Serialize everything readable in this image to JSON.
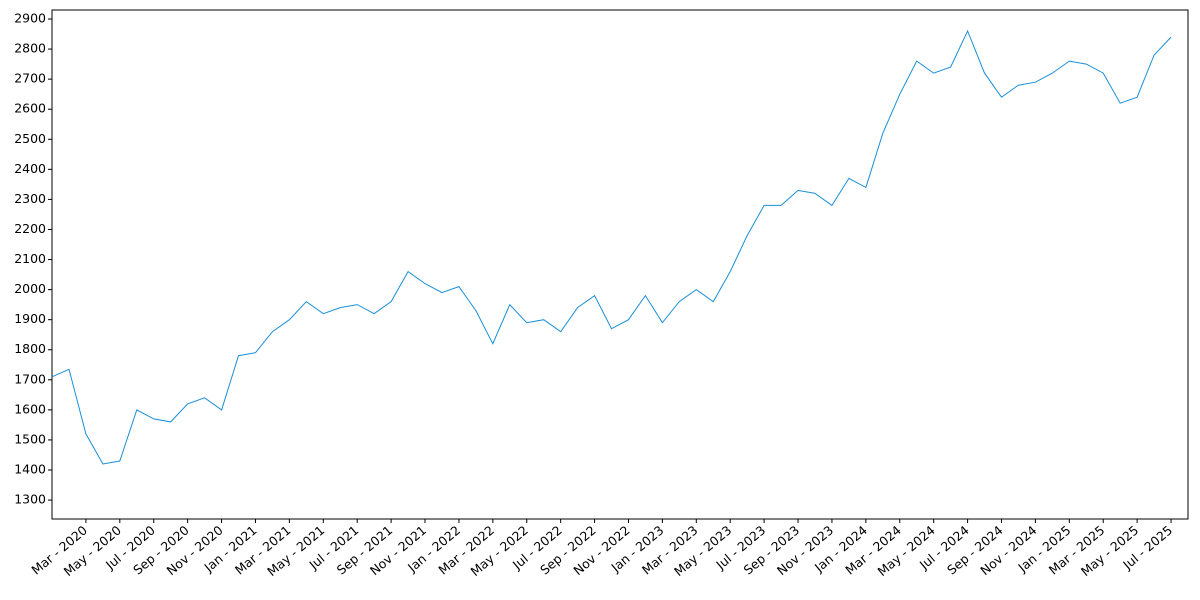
{
  "chart_data": {
    "type": "line",
    "x": [
      "2020-01",
      "2020-02",
      "2020-03",
      "2020-04",
      "2020-05",
      "2020-06",
      "2020-07",
      "2020-08",
      "2020-09",
      "2020-10",
      "2020-11",
      "2020-12",
      "2021-01",
      "2021-02",
      "2021-03",
      "2021-04",
      "2021-05",
      "2021-06",
      "2021-07",
      "2021-08",
      "2021-09",
      "2021-10",
      "2021-11",
      "2021-12",
      "2022-01",
      "2022-02",
      "2022-03",
      "2022-04",
      "2022-05",
      "2022-06",
      "2022-07",
      "2022-08",
      "2022-09",
      "2022-10",
      "2022-11",
      "2022-12",
      "2023-01",
      "2023-02",
      "2023-03",
      "2023-04",
      "2023-05",
      "2023-06",
      "2023-07",
      "2023-08",
      "2023-09",
      "2023-10",
      "2023-11",
      "2023-12",
      "2024-01",
      "2024-02",
      "2024-03",
      "2024-04",
      "2024-05",
      "2024-06",
      "2024-07",
      "2024-08",
      "2024-09",
      "2024-10",
      "2024-11",
      "2024-12",
      "2025-01",
      "2025-02",
      "2025-03",
      "2025-04",
      "2025-05",
      "2025-06",
      "2025-07"
    ],
    "series": [
      {
        "color": "#1a8fd6",
        "values": [
          1710,
          1735,
          1520,
          1420,
          1430,
          1600,
          1570,
          1560,
          1620,
          1640,
          1600,
          1780,
          1790,
          1860,
          1900,
          1960,
          1920,
          1940,
          1950,
          1920,
          1960,
          2060,
          2020,
          1990,
          2010,
          1930,
          1820,
          1950,
          1890,
          1900,
          1860,
          1940,
          1980,
          1870,
          1900,
          1980,
          1890,
          1960,
          2000,
          1960,
          2060,
          2180,
          2280,
          2280,
          2330,
          2320,
          2280,
          2370,
          2340,
          2520,
          2650,
          2760,
          2720,
          2740,
          2860,
          2720,
          2640,
          2680,
          2690,
          2720,
          2760,
          2750,
          2720,
          2620,
          2640,
          2780,
          2840
        ]
      }
    ],
    "xlim": [
      "2020-01",
      "2025-08"
    ],
    "xticks": [
      {
        "value": "2020-03",
        "label": "Mar - 2020"
      },
      {
        "value": "2020-05",
        "label": "May - 2020"
      },
      {
        "value": "2020-07",
        "label": "Jul - 2020"
      },
      {
        "value": "2020-09",
        "label": "Sep - 2020"
      },
      {
        "value": "2020-11",
        "label": "Nov - 2020"
      },
      {
        "value": "2021-01",
        "label": "Jan - 2021"
      },
      {
        "value": "2021-03",
        "label": "Mar - 2021"
      },
      {
        "value": "2021-05",
        "label": "May - 2021"
      },
      {
        "value": "2021-07",
        "label": "Jul - 2021"
      },
      {
        "value": "2021-09",
        "label": "Sep - 2021"
      },
      {
        "value": "2021-11",
        "label": "Nov - 2021"
      },
      {
        "value": "2022-01",
        "label": "Jan - 2022"
      },
      {
        "value": "2022-03",
        "label": "Mar - 2022"
      },
      {
        "value": "2022-05",
        "label": "May - 2022"
      },
      {
        "value": "2022-07",
        "label": "Jul - 2022"
      },
      {
        "value": "2022-09",
        "label": "Sep - 2022"
      },
      {
        "value": "2022-11",
        "label": "Nov - 2022"
      },
      {
        "value": "2023-01",
        "label": "Jan - 2023"
      },
      {
        "value": "2023-03",
        "label": "Mar - 2023"
      },
      {
        "value": "2023-05",
        "label": "May - 2023"
      },
      {
        "value": "2023-07",
        "label": "Jul - 2023"
      },
      {
        "value": "2023-09",
        "label": "Sep - 2023"
      },
      {
        "value": "2023-11",
        "label": "Nov - 2023"
      },
      {
        "value": "2024-01",
        "label": "Jan - 2024"
      },
      {
        "value": "2024-03",
        "label": "Mar - 2024"
      },
      {
        "value": "2024-05",
        "label": "May - 2024"
      },
      {
        "value": "2024-07",
        "label": "Jul - 2024"
      },
      {
        "value": "2024-09",
        "label": "Sep - 2024"
      },
      {
        "value": "2024-11",
        "label": "Nov - 2024"
      },
      {
        "value": "2025-01",
        "label": "Jan - 2025"
      },
      {
        "value": "2025-03",
        "label": "Mar - 2025"
      },
      {
        "value": "2025-05",
        "label": "May - 2025"
      },
      {
        "value": "2025-07",
        "label": "Jul - 2025"
      }
    ],
    "ylim": [
      1237,
      2930
    ],
    "yticks": [
      1300,
      1400,
      1500,
      1600,
      1700,
      1800,
      1900,
      2000,
      2100,
      2200,
      2300,
      2400,
      2500,
      2600,
      2700,
      2800,
      2900
    ],
    "grid": false
  }
}
